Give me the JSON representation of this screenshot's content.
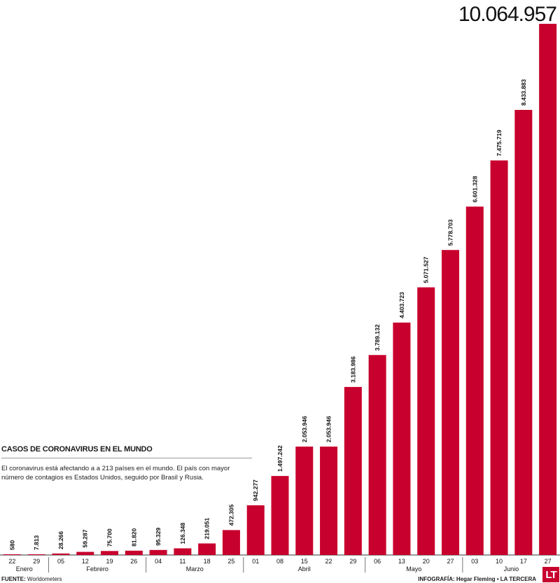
{
  "info": {
    "title": "Casos de coronavirus en el mundo",
    "description": "El coronavirus está afectando a a 213 países en el mundo. El país con mayor número de contagios es Estados Unidos, seguido por Brasil y Rusia."
  },
  "footer": {
    "source_label": "FUENTE:",
    "source_value": "Worldometers",
    "credit": "INFOGRAFÍA: Hegar Fleming • LA TERCERA"
  },
  "logo_text": "LT",
  "chart_data": {
    "type": "bar",
    "title": "Casos de coronavirus en el mundo",
    "bar_color": "#c8002d",
    "categories": [
      "22",
      "29",
      "05",
      "12",
      "19",
      "26",
      "04",
      "11",
      "18",
      "25",
      "01",
      "08",
      "15",
      "22",
      "29",
      "06",
      "13",
      "20",
      "27",
      "03",
      "10",
      "17",
      "27"
    ],
    "values": [
      580,
      7813,
      28266,
      59287,
      75700,
      81820,
      95329,
      126348,
      219051,
      472305,
      942277,
      1497242,
      2053946,
      2053946,
      3183986,
      3789132,
      4403723,
      5071527,
      5778703,
      6601328,
      7475719,
      8433883,
      10064957
    ],
    "value_labels": [
      "580",
      "7.813",
      "28.266",
      "59.287",
      "75.700",
      "81.820",
      "95.329",
      "126.348",
      "219.051",
      "472.305",
      "942.277",
      "1.497.242",
      "2.053.946",
      "2.053.946",
      "3.183.986",
      "3.789.132",
      "4.403.723",
      "5.071.527",
      "5.778.703",
      "6.601.328",
      "7.475.719",
      "8.433.883",
      "10.064.957"
    ],
    "months": [
      {
        "name": "Enero",
        "start": 0,
        "end": 1
      },
      {
        "name": "Febrero",
        "start": 2,
        "end": 5
      },
      {
        "name": "Marzo",
        "start": 6,
        "end": 9
      },
      {
        "name": "Abril",
        "start": 10,
        "end": 14
      },
      {
        "name": "Mayo",
        "start": 15,
        "end": 18
      },
      {
        "name": "Junio",
        "start": 19,
        "end": 22
      }
    ],
    "ylim": [
      0,
      10064957
    ]
  }
}
